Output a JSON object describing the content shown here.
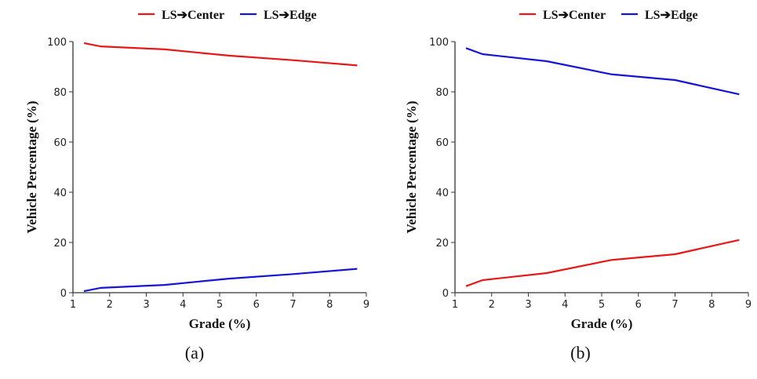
{
  "chart_data": [
    {
      "type": "line",
      "caption": "(a)",
      "xlabel": "Grade (%)",
      "ylabel": "Vehicle Percentage (%)",
      "xlim": [
        1,
        9
      ],
      "ylim": [
        0,
        100
      ],
      "xticks": [
        1,
        2,
        3,
        4,
        5,
        6,
        7,
        8,
        9
      ],
      "yticks": [
        0,
        20,
        40,
        60,
        80,
        100
      ],
      "grid": false,
      "legend": "top",
      "x": [
        1.3,
        1.75,
        3.5,
        5.25,
        7,
        8.75
      ],
      "series": [
        {
          "name": "LS➔Center",
          "color": "#e81818",
          "values": [
            99.4,
            98.1,
            96.9,
            94.4,
            92.6,
            90.5
          ]
        },
        {
          "name": "LS➔Edge",
          "color": "#1515d6",
          "values": [
            0.6,
            1.9,
            3.1,
            5.6,
            7.4,
            9.5
          ]
        }
      ]
    },
    {
      "type": "line",
      "caption": "(b)",
      "xlabel": "Grade (%)",
      "ylabel": "Vehicle Percentage (%)",
      "xlim": [
        1,
        9
      ],
      "ylim": [
        0,
        100
      ],
      "xticks": [
        1,
        2,
        3,
        4,
        5,
        6,
        7,
        8,
        9
      ],
      "yticks": [
        0,
        20,
        40,
        60,
        80,
        100
      ],
      "grid": false,
      "legend": "top",
      "x": [
        1.3,
        1.75,
        3.5,
        5.25,
        7,
        8.75
      ],
      "series": [
        {
          "name": "LS➔Center",
          "color": "#e81818",
          "values": [
            2.6,
            5.0,
            7.8,
            13.0,
            15.3,
            21.0
          ]
        },
        {
          "name": "LS➔Edge",
          "color": "#1515d6",
          "values": [
            97.4,
            95.0,
            92.2,
            87.0,
            84.7,
            79.0
          ]
        }
      ]
    }
  ]
}
